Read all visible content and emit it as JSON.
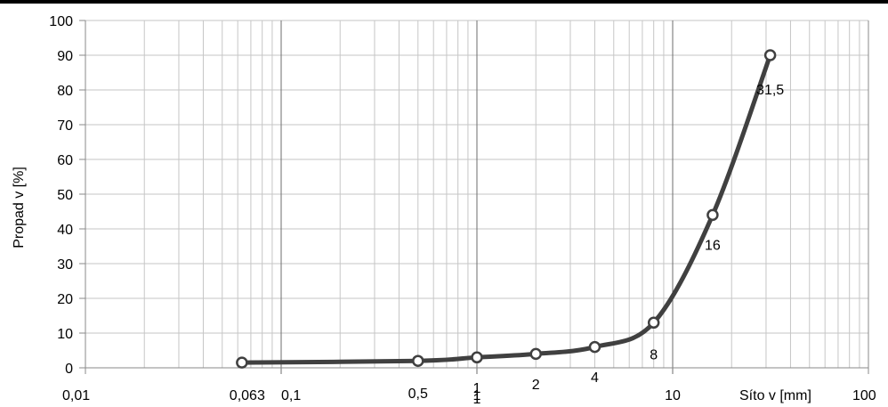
{
  "chart_data": {
    "type": "line",
    "xscale": "log",
    "xlim": [
      0.01,
      100
    ],
    "ylim": [
      0,
      100
    ],
    "xlabel": "Síto v [mm]",
    "ylabel": "Propad v [%]",
    "grid": true,
    "x_ticks": [
      {
        "value": 0.01,
        "label": "0,01"
      },
      {
        "value": 0.1,
        "label": "0,1"
      },
      {
        "value": 1,
        "label": "1"
      },
      {
        "value": 10,
        "label": "10"
      },
      {
        "value": 100,
        "label": "100"
      }
    ],
    "y_ticks": [
      0,
      10,
      20,
      30,
      40,
      50,
      60,
      70,
      80,
      90,
      100
    ],
    "series": [
      {
        "color": "#404040",
        "points": [
          {
            "x": 0.063,
            "y": 1.5,
            "label": "0,063"
          },
          {
            "x": 0.5,
            "y": 2,
            "label": "0,5"
          },
          {
            "x": 1,
            "y": 3,
            "label": "1"
          },
          {
            "x": 2,
            "y": 4,
            "label": "2"
          },
          {
            "x": 4,
            "y": 6,
            "label": "4"
          },
          {
            "x": 8,
            "y": 13,
            "label": "8"
          },
          {
            "x": 16,
            "y": 44,
            "label": "16"
          },
          {
            "x": 31.5,
            "y": 90,
            "label": "31,5"
          }
        ]
      }
    ],
    "extra_labels": [
      {
        "x": 1,
        "text": "1"
      }
    ]
  }
}
